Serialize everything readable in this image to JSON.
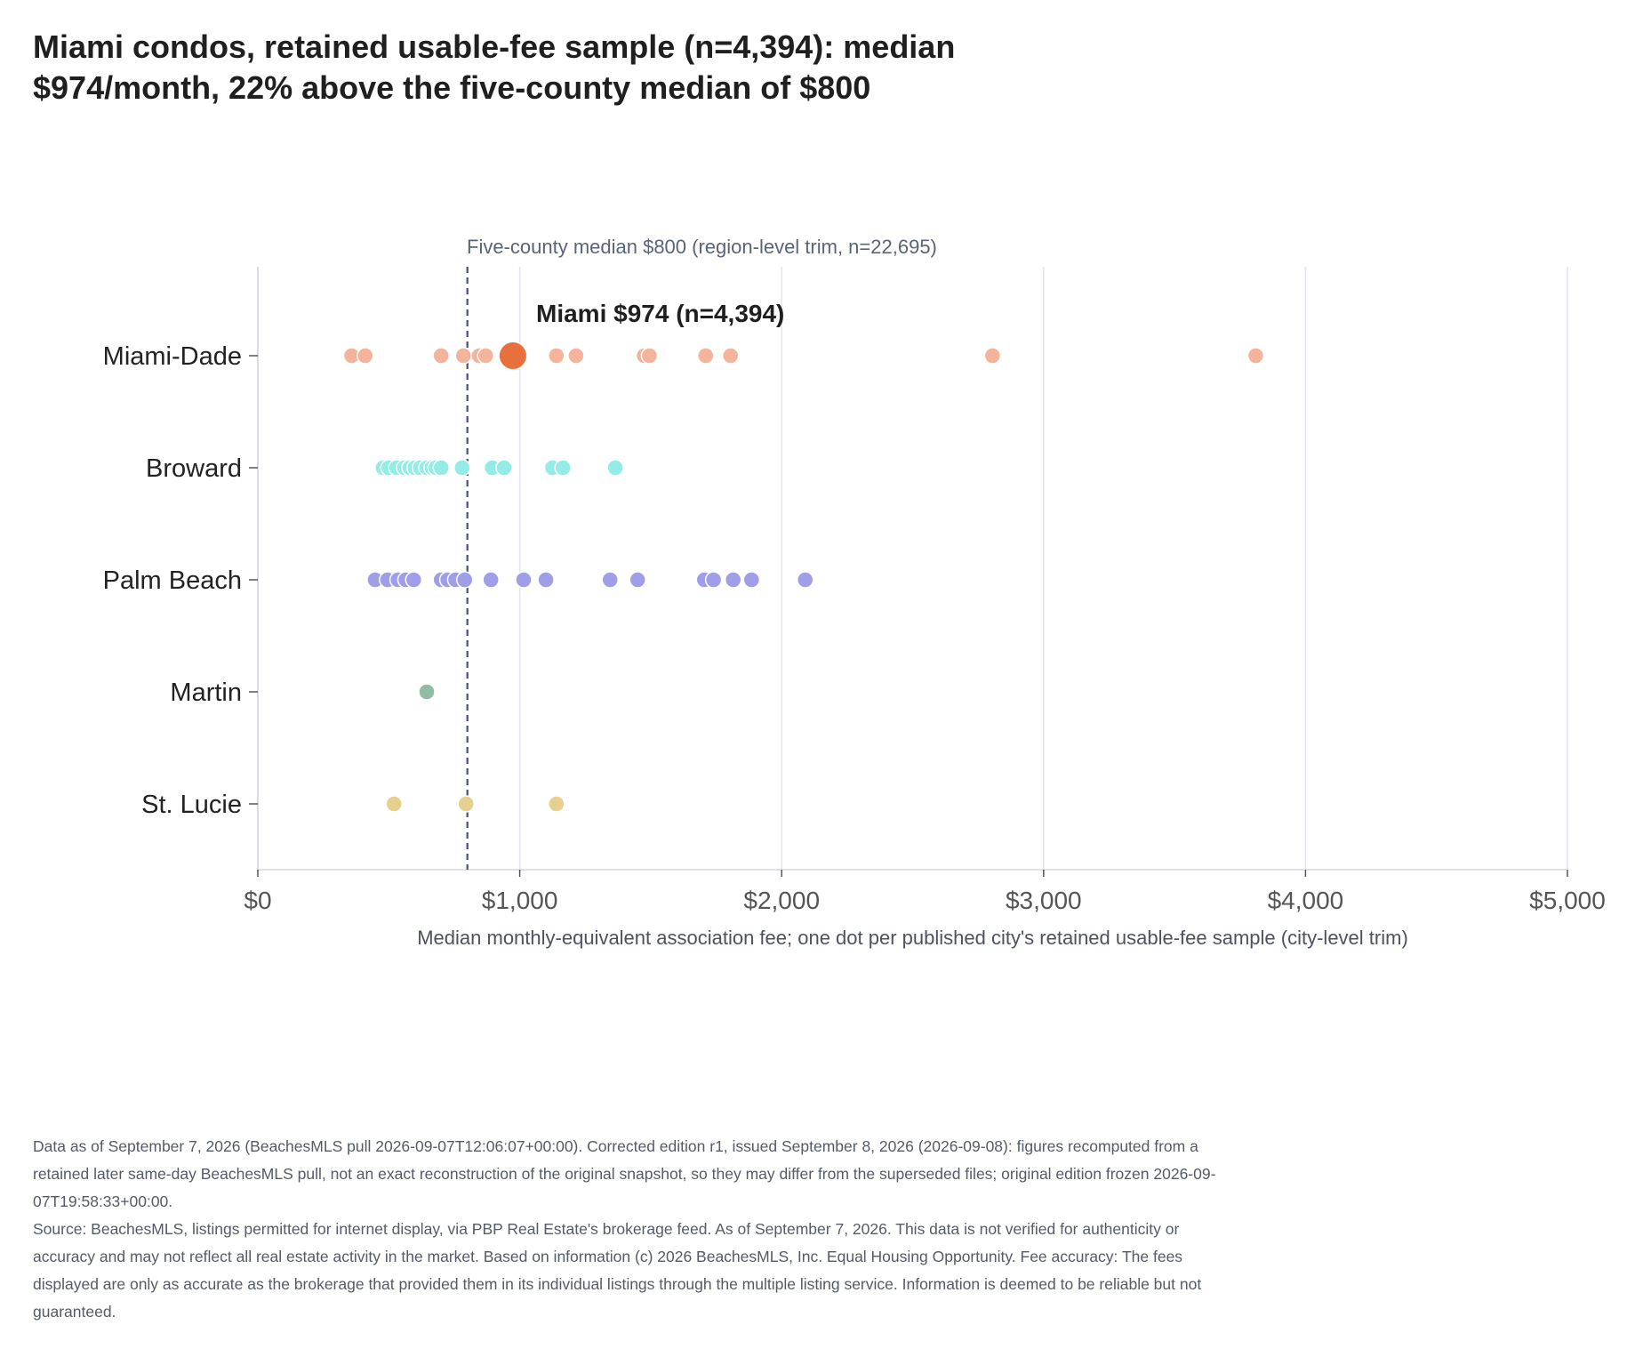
{
  "title_lines": [
    "Miami condos, retained usable-fee sample (n=4,394): median",
    "$974/month, 22% above the five-county median of $800"
  ],
  "footnote": [
    "Data as of September 7, 2026 (BeachesMLS pull 2026-09-07T12:06:07+00:00). Corrected edition r1, issued September 8, 2026 (2026-09-08): figures recomputed from a retained later same-day BeachesMLS pull, not an exact reconstruction of the original snapshot, so they may differ from the superseded files; original edition frozen 2026-09-07T19:58:33+00:00.",
    "Source: BeachesMLS, listings permitted for internet display, via PBP Real Estate's brokerage feed. As of September 7, 2026. This data is not verified for authenticity or accuracy and may not reflect all real estate activity in the market. Based on information (c) 2026 BeachesMLS, Inc. Equal Housing Opportunity. Fee accuracy: The fees displayed are only as accurate as the brokerage that provided them in its individual listings through the multiple listing service. Information is deemed to be reliable but not guaranteed."
  ],
  "chart_data": {
    "type": "scatter",
    "xlabel": "Median monthly-equivalent association fee; one dot per published city's retained usable-fee sample (city-level trim)",
    "xlim": [
      0,
      5000
    ],
    "xticks": [
      0,
      1000,
      2000,
      3000,
      4000,
      5000
    ],
    "xtick_labels": [
      "$0",
      "$1,000",
      "$2,000",
      "$3,000",
      "$4,000",
      "$5,000"
    ],
    "grid": "vertical",
    "categories": [
      "Miami-Dade",
      "Broward",
      "Palm Beach",
      "Martin",
      "St. Lucie"
    ],
    "series": [
      {
        "category": "Miami-Dade",
        "color": "#f4b49b",
        "values": [
          358,
          410,
          700,
          785,
          845,
          870,
          1140,
          1215,
          1475,
          1495,
          1710,
          1805,
          2805,
          3810
        ]
      },
      {
        "category": "Broward",
        "color": "#93ece6",
        "values": [
          478,
          500,
          530,
          560,
          580,
          600,
          620,
          645,
          665,
          680,
          700,
          780,
          895,
          940,
          1125,
          1165,
          1365
        ]
      },
      {
        "category": "Palm Beach",
        "color": "#a09ee8",
        "values": [
          448,
          495,
          535,
          565,
          595,
          700,
          725,
          755,
          790,
          890,
          1015,
          1100,
          1345,
          1450,
          1705,
          1740,
          1815,
          1885,
          2090
        ]
      },
      {
        "category": "Martin",
        "color": "#90bba4",
        "values": [
          645
        ]
      },
      {
        "category": "St. Lucie",
        "color": "#e7d08e",
        "values": [
          520,
          795,
          1140
        ]
      }
    ],
    "highlight": {
      "category": "Miami-Dade",
      "value": 974,
      "color": "#e8703d",
      "label": "Miami $974 (n=4,394)"
    },
    "reference_line": {
      "value": 800,
      "label": "Five-county median $800 (region-level trim, n=22,695)"
    }
  }
}
